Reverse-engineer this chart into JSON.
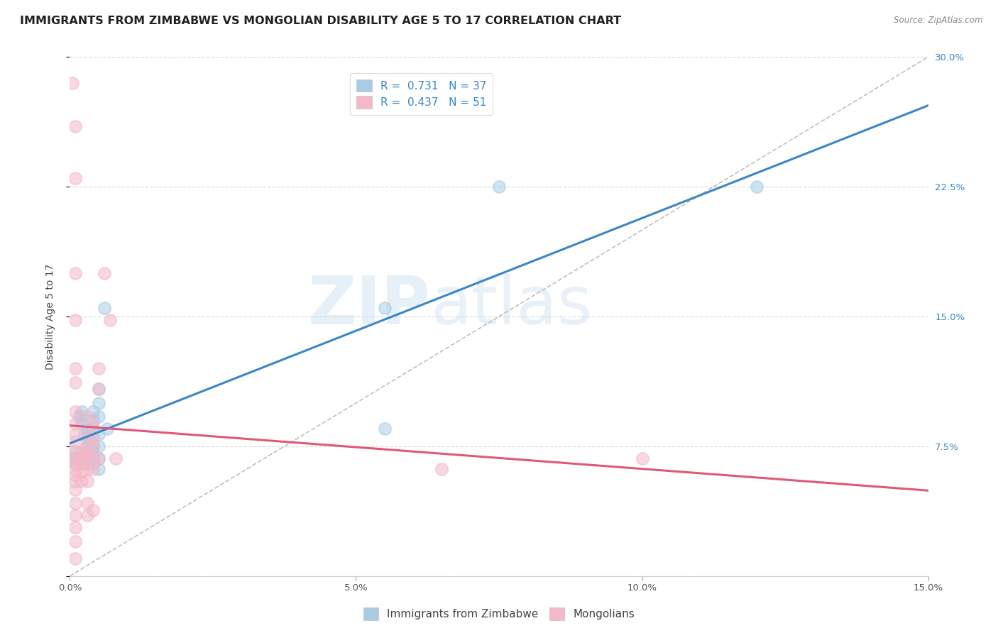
{
  "title": "IMMIGRANTS FROM ZIMBABWE VS MONGOLIAN DISABILITY AGE 5 TO 17 CORRELATION CHART",
  "source": "Source: ZipAtlas.com",
  "ylabel": "Disability Age 5 to 17",
  "xlim": [
    0,
    0.15
  ],
  "ylim": [
    0,
    0.3
  ],
  "xticks": [
    0.0,
    0.05,
    0.1,
    0.15
  ],
  "yticks": [
    0.0,
    0.075,
    0.15,
    0.225,
    0.3
  ],
  "xticklabels": [
    "0.0%",
    "5.0%",
    "10.0%",
    "15.0%"
  ],
  "right_yticklabels": [
    "",
    "7.5%",
    "15.0%",
    "22.5%",
    "30.0%"
  ],
  "blue_R": 0.731,
  "blue_N": 37,
  "pink_R": 0.437,
  "pink_N": 51,
  "blue_color": "#a8cce4",
  "pink_color": "#f4b8c8",
  "blue_line_color": "#3a86c8",
  "pink_line_color": "#e05878",
  "blue_scatter": [
    [
      0.0005,
      0.068
    ],
    [
      0.001,
      0.072
    ],
    [
      0.001,
      0.068
    ],
    [
      0.001,
      0.065
    ],
    [
      0.0015,
      0.092
    ],
    [
      0.002,
      0.095
    ],
    [
      0.002,
      0.092
    ],
    [
      0.002,
      0.088
    ],
    [
      0.0025,
      0.082
    ],
    [
      0.003,
      0.085
    ],
    [
      0.003,
      0.08
    ],
    [
      0.003,
      0.075
    ],
    [
      0.003,
      0.072
    ],
    [
      0.003,
      0.068
    ],
    [
      0.003,
      0.065
    ],
    [
      0.0035,
      0.068
    ],
    [
      0.004,
      0.095
    ],
    [
      0.004,
      0.09
    ],
    [
      0.004,
      0.085
    ],
    [
      0.004,
      0.08
    ],
    [
      0.004,
      0.075
    ],
    [
      0.004,
      0.072
    ],
    [
      0.004,
      0.068
    ],
    [
      0.004,
      0.065
    ],
    [
      0.005,
      0.108
    ],
    [
      0.005,
      0.1
    ],
    [
      0.005,
      0.092
    ],
    [
      0.005,
      0.082
    ],
    [
      0.005,
      0.075
    ],
    [
      0.005,
      0.068
    ],
    [
      0.005,
      0.062
    ],
    [
      0.006,
      0.155
    ],
    [
      0.0065,
      0.085
    ],
    [
      0.055,
      0.155
    ],
    [
      0.055,
      0.085
    ],
    [
      0.075,
      0.225
    ],
    [
      0.12,
      0.225
    ]
  ],
  "pink_scatter": [
    [
      0.0005,
      0.285
    ],
    [
      0.001,
      0.26
    ],
    [
      0.001,
      0.23
    ],
    [
      0.001,
      0.175
    ],
    [
      0.001,
      0.148
    ],
    [
      0.001,
      0.12
    ],
    [
      0.001,
      0.112
    ],
    [
      0.001,
      0.095
    ],
    [
      0.001,
      0.088
    ],
    [
      0.001,
      0.082
    ],
    [
      0.001,
      0.078
    ],
    [
      0.001,
      0.072
    ],
    [
      0.001,
      0.068
    ],
    [
      0.001,
      0.065
    ],
    [
      0.001,
      0.062
    ],
    [
      0.001,
      0.058
    ],
    [
      0.001,
      0.055
    ],
    [
      0.001,
      0.05
    ],
    [
      0.001,
      0.042
    ],
    [
      0.001,
      0.035
    ],
    [
      0.001,
      0.028
    ],
    [
      0.001,
      0.02
    ],
    [
      0.001,
      0.01
    ],
    [
      0.0015,
      0.068
    ],
    [
      0.002,
      0.072
    ],
    [
      0.002,
      0.065
    ],
    [
      0.002,
      0.06
    ],
    [
      0.002,
      0.055
    ],
    [
      0.0025,
      0.068
    ],
    [
      0.003,
      0.092
    ],
    [
      0.003,
      0.082
    ],
    [
      0.003,
      0.075
    ],
    [
      0.003,
      0.07
    ],
    [
      0.003,
      0.062
    ],
    [
      0.003,
      0.055
    ],
    [
      0.003,
      0.042
    ],
    [
      0.003,
      0.035
    ],
    [
      0.004,
      0.088
    ],
    [
      0.004,
      0.08
    ],
    [
      0.004,
      0.075
    ],
    [
      0.004,
      0.068
    ],
    [
      0.004,
      0.062
    ],
    [
      0.004,
      0.038
    ],
    [
      0.005,
      0.12
    ],
    [
      0.005,
      0.108
    ],
    [
      0.005,
      0.068
    ],
    [
      0.006,
      0.175
    ],
    [
      0.007,
      0.148
    ],
    [
      0.008,
      0.068
    ],
    [
      0.065,
      0.062
    ],
    [
      0.1,
      0.068
    ]
  ],
  "watermark_zip": "ZIP",
  "watermark_atlas": "atlas",
  "background_color": "#ffffff",
  "grid_color": "#dddddd",
  "title_fontsize": 11.5,
  "axis_fontsize": 10,
  "tick_fontsize": 9.5,
  "legend_fontsize": 11
}
